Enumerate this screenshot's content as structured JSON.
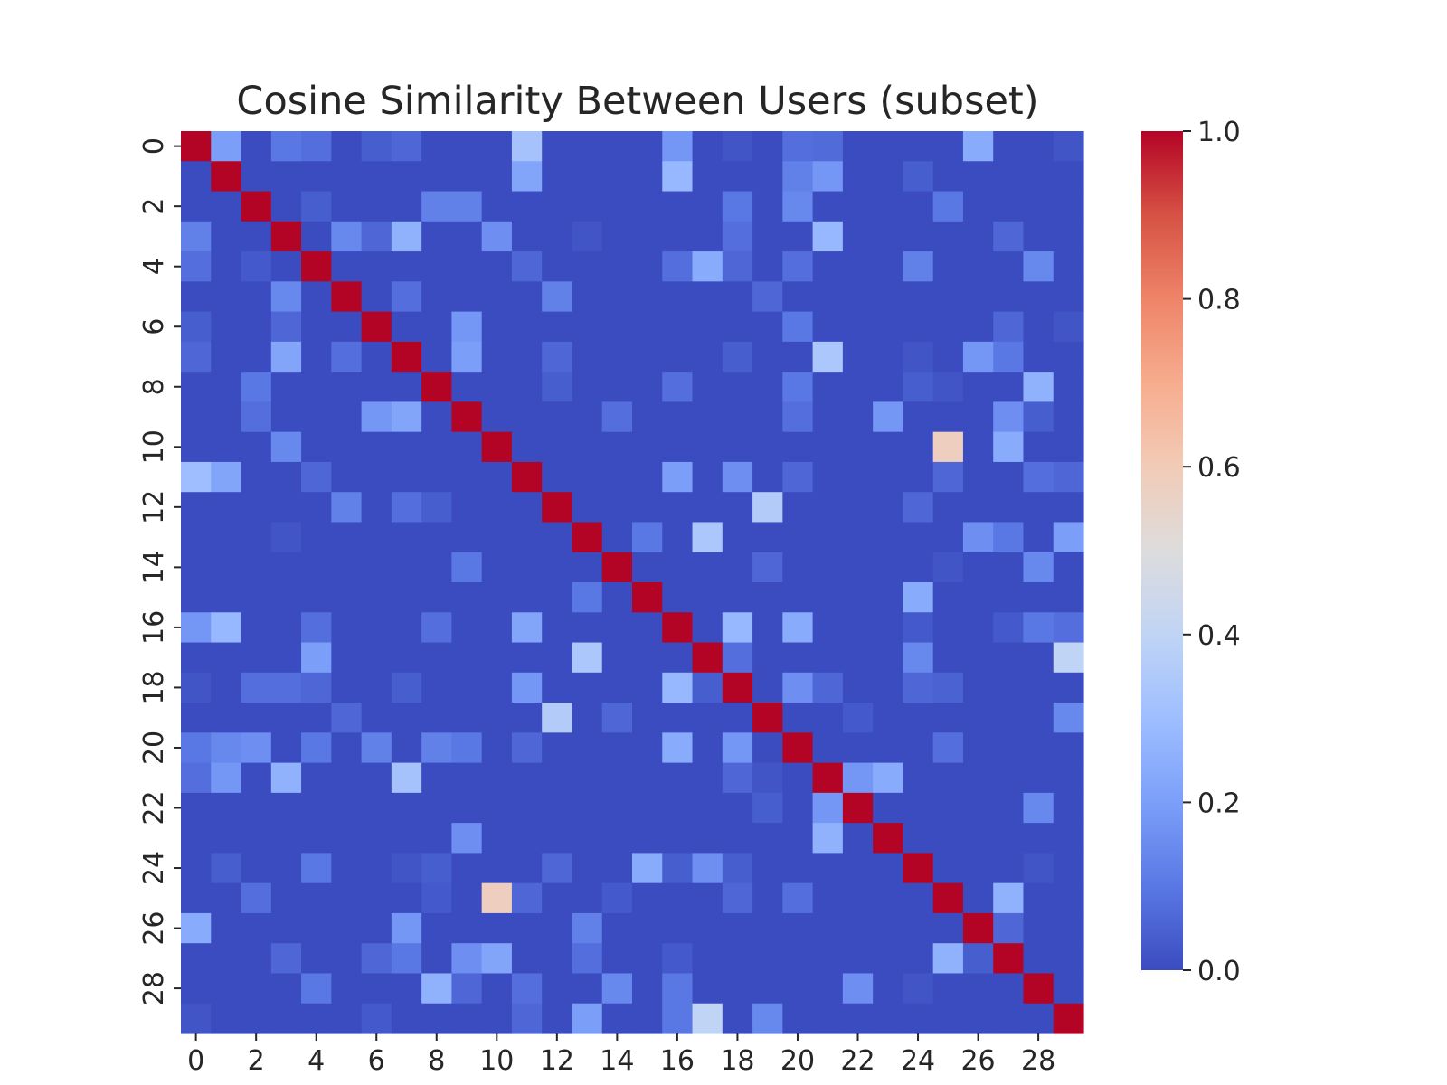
{
  "chart_data": {
    "type": "heatmap",
    "title": "Cosine Similarity Between Users (subset)",
    "xlabel": "",
    "ylabel": "",
    "rows": 30,
    "cols": 30,
    "x_tick_labels": [
      "0",
      "2",
      "4",
      "6",
      "8",
      "10",
      "12",
      "14",
      "16",
      "18",
      "20",
      "22",
      "24",
      "26",
      "28"
    ],
    "y_tick_labels": [
      "0",
      "2",
      "4",
      "6",
      "8",
      "10",
      "12",
      "14",
      "16",
      "18",
      "20",
      "22",
      "24",
      "26",
      "28"
    ],
    "colorbar": {
      "range": [
        0.0,
        1.0
      ],
      "tick_labels": [
        "0.0",
        "0.2",
        "0.4",
        "0.6",
        "0.8",
        "1.0"
      ],
      "colormap": "coolwarm",
      "low_color": "#3b4cc0",
      "mid_color": "#dddddd",
      "high_color": "#b40426"
    },
    "cells": [
      [
        0,
        1,
        0.2
      ],
      [
        0,
        3,
        0.1
      ],
      [
        0,
        4,
        0.08
      ],
      [
        0,
        6,
        0.04
      ],
      [
        0,
        7,
        0.06
      ],
      [
        0,
        11,
        0.32
      ],
      [
        0,
        16,
        0.18
      ],
      [
        0,
        18,
        0.02
      ],
      [
        0,
        20,
        0.08
      ],
      [
        0,
        21,
        0.07
      ],
      [
        0,
        26,
        0.24
      ],
      [
        0,
        29,
        0.02
      ],
      [
        1,
        11,
        0.22
      ],
      [
        1,
        16,
        0.28
      ],
      [
        1,
        20,
        0.12
      ],
      [
        1,
        21,
        0.18
      ],
      [
        1,
        24,
        0.04
      ],
      [
        2,
        4,
        0.04
      ],
      [
        2,
        8,
        0.12
      ],
      [
        2,
        9,
        0.12
      ],
      [
        2,
        18,
        0.1
      ],
      [
        2,
        20,
        0.14
      ],
      [
        2,
        25,
        0.1
      ],
      [
        3,
        0,
        0.12
      ],
      [
        3,
        5,
        0.14
      ],
      [
        3,
        6,
        0.06
      ],
      [
        3,
        7,
        0.26
      ],
      [
        3,
        10,
        0.16
      ],
      [
        3,
        13,
        0.02
      ],
      [
        3,
        18,
        0.08
      ],
      [
        3,
        21,
        0.28
      ],
      [
        3,
        27,
        0.06
      ],
      [
        4,
        0,
        0.08
      ],
      [
        4,
        2,
        0.03
      ],
      [
        4,
        11,
        0.06
      ],
      [
        4,
        16,
        0.08
      ],
      [
        4,
        17,
        0.24
      ],
      [
        4,
        18,
        0.06
      ],
      [
        4,
        20,
        0.08
      ],
      [
        4,
        24,
        0.12
      ],
      [
        4,
        28,
        0.14
      ],
      [
        5,
        3,
        0.14
      ],
      [
        5,
        7,
        0.08
      ],
      [
        5,
        12,
        0.12
      ],
      [
        5,
        19,
        0.06
      ],
      [
        6,
        0,
        0.04
      ],
      [
        6,
        3,
        0.06
      ],
      [
        6,
        9,
        0.18
      ],
      [
        6,
        20,
        0.1
      ],
      [
        6,
        27,
        0.06
      ],
      [
        6,
        29,
        0.02
      ],
      [
        7,
        0,
        0.06
      ],
      [
        7,
        3,
        0.22
      ],
      [
        7,
        5,
        0.08
      ],
      [
        7,
        9,
        0.2
      ],
      [
        7,
        12,
        0.06
      ],
      [
        7,
        18,
        0.04
      ],
      [
        7,
        21,
        0.34
      ],
      [
        7,
        24,
        0.02
      ],
      [
        7,
        26,
        0.18
      ],
      [
        7,
        27,
        0.1
      ],
      [
        8,
        2,
        0.1
      ],
      [
        8,
        12,
        0.04
      ],
      [
        8,
        16,
        0.08
      ],
      [
        8,
        20,
        0.1
      ],
      [
        8,
        24,
        0.04
      ],
      [
        8,
        25,
        0.02
      ],
      [
        8,
        28,
        0.26
      ],
      [
        9,
        2,
        0.08
      ],
      [
        9,
        6,
        0.18
      ],
      [
        9,
        7,
        0.22
      ],
      [
        9,
        14,
        0.08
      ],
      [
        9,
        20,
        0.08
      ],
      [
        9,
        23,
        0.18
      ],
      [
        9,
        27,
        0.16
      ],
      [
        9,
        28,
        0.04
      ],
      [
        10,
        3,
        0.14
      ],
      [
        10,
        25,
        0.58
      ],
      [
        10,
        27,
        0.24
      ],
      [
        11,
        0,
        0.3
      ],
      [
        11,
        1,
        0.22
      ],
      [
        11,
        4,
        0.06
      ],
      [
        11,
        16,
        0.2
      ],
      [
        11,
        18,
        0.16
      ],
      [
        11,
        20,
        0.06
      ],
      [
        11,
        25,
        0.06
      ],
      [
        11,
        28,
        0.08
      ],
      [
        11,
        29,
        0.06
      ],
      [
        12,
        5,
        0.12
      ],
      [
        12,
        7,
        0.08
      ],
      [
        12,
        8,
        0.04
      ],
      [
        12,
        19,
        0.36
      ],
      [
        12,
        24,
        0.06
      ],
      [
        13,
        3,
        0.02
      ],
      [
        13,
        15,
        0.1
      ],
      [
        13,
        17,
        0.34
      ],
      [
        13,
        26,
        0.16
      ],
      [
        13,
        27,
        0.1
      ],
      [
        13,
        29,
        0.2
      ],
      [
        14,
        9,
        0.1
      ],
      [
        14,
        19,
        0.06
      ],
      [
        14,
        25,
        0.02
      ],
      [
        14,
        28,
        0.14
      ],
      [
        15,
        13,
        0.1
      ],
      [
        15,
        24,
        0.24
      ],
      [
        16,
        0,
        0.18
      ],
      [
        16,
        1,
        0.28
      ],
      [
        16,
        4,
        0.08
      ],
      [
        16,
        8,
        0.08
      ],
      [
        16,
        11,
        0.22
      ],
      [
        16,
        18,
        0.28
      ],
      [
        16,
        20,
        0.24
      ],
      [
        16,
        24,
        0.03
      ],
      [
        16,
        27,
        0.03
      ],
      [
        16,
        28,
        0.1
      ],
      [
        16,
        29,
        0.08
      ],
      [
        17,
        4,
        0.2
      ],
      [
        17,
        13,
        0.34
      ],
      [
        17,
        18,
        0.08
      ],
      [
        17,
        24,
        0.14
      ],
      [
        17,
        29,
        0.4
      ],
      [
        18,
        0,
        0.02
      ],
      [
        18,
        2,
        0.08
      ],
      [
        18,
        3,
        0.08
      ],
      [
        18,
        4,
        0.06
      ],
      [
        18,
        7,
        0.04
      ],
      [
        18,
        11,
        0.18
      ],
      [
        18,
        16,
        0.28
      ],
      [
        18,
        17,
        0.04
      ],
      [
        18,
        20,
        0.16
      ],
      [
        18,
        21,
        0.06
      ],
      [
        18,
        24,
        0.06
      ],
      [
        18,
        25,
        0.05
      ],
      [
        19,
        5,
        0.06
      ],
      [
        19,
        12,
        0.36
      ],
      [
        19,
        14,
        0.06
      ],
      [
        19,
        22,
        0.03
      ],
      [
        19,
        29,
        0.14
      ],
      [
        20,
        0,
        0.1
      ],
      [
        20,
        1,
        0.14
      ],
      [
        20,
        2,
        0.16
      ],
      [
        20,
        4,
        0.1
      ],
      [
        20,
        6,
        0.12
      ],
      [
        20,
        8,
        0.12
      ],
      [
        20,
        9,
        0.1
      ],
      [
        20,
        11,
        0.06
      ],
      [
        20,
        16,
        0.24
      ],
      [
        20,
        18,
        0.18
      ],
      [
        20,
        25,
        0.08
      ],
      [
        21,
        0,
        0.08
      ],
      [
        21,
        1,
        0.18
      ],
      [
        21,
        3,
        0.26
      ],
      [
        21,
        7,
        0.32
      ],
      [
        21,
        18,
        0.06
      ],
      [
        21,
        19,
        0.02
      ],
      [
        21,
        22,
        0.18
      ],
      [
        21,
        23,
        0.24
      ],
      [
        22,
        19,
        0.04
      ],
      [
        22,
        21,
        0.18
      ],
      [
        22,
        28,
        0.14
      ],
      [
        23,
        9,
        0.16
      ],
      [
        23,
        21,
        0.26
      ],
      [
        24,
        1,
        0.04
      ],
      [
        24,
        4,
        0.1
      ],
      [
        24,
        7,
        0.02
      ],
      [
        24,
        8,
        0.04
      ],
      [
        24,
        12,
        0.06
      ],
      [
        24,
        15,
        0.24
      ],
      [
        24,
        16,
        0.04
      ],
      [
        24,
        17,
        0.16
      ],
      [
        24,
        18,
        0.04
      ],
      [
        24,
        28,
        0.02
      ],
      [
        25,
        2,
        0.08
      ],
      [
        25,
        8,
        0.03
      ],
      [
        25,
        10,
        0.58
      ],
      [
        25,
        11,
        0.06
      ],
      [
        25,
        14,
        0.03
      ],
      [
        25,
        18,
        0.06
      ],
      [
        25,
        20,
        0.08
      ],
      [
        25,
        27,
        0.26
      ],
      [
        26,
        0,
        0.24
      ],
      [
        26,
        7,
        0.18
      ],
      [
        26,
        13,
        0.12
      ],
      [
        26,
        27,
        0.06
      ],
      [
        27,
        3,
        0.06
      ],
      [
        27,
        6,
        0.06
      ],
      [
        27,
        7,
        0.1
      ],
      [
        27,
        9,
        0.16
      ],
      [
        27,
        10,
        0.22
      ],
      [
        27,
        13,
        0.08
      ],
      [
        27,
        16,
        0.03
      ],
      [
        27,
        25,
        0.26
      ],
      [
        27,
        26,
        0.04
      ],
      [
        28,
        4,
        0.1
      ],
      [
        28,
        8,
        0.26
      ],
      [
        28,
        9,
        0.06
      ],
      [
        28,
        11,
        0.08
      ],
      [
        28,
        14,
        0.14
      ],
      [
        28,
        16,
        0.1
      ],
      [
        28,
        22,
        0.16
      ],
      [
        28,
        24,
        0.02
      ],
      [
        29,
        0,
        0.02
      ],
      [
        29,
        6,
        0.03
      ],
      [
        29,
        11,
        0.06
      ],
      [
        29,
        13,
        0.2
      ],
      [
        29,
        16,
        0.1
      ],
      [
        29,
        17,
        0.4
      ],
      [
        29,
        19,
        0.14
      ]
    ]
  }
}
